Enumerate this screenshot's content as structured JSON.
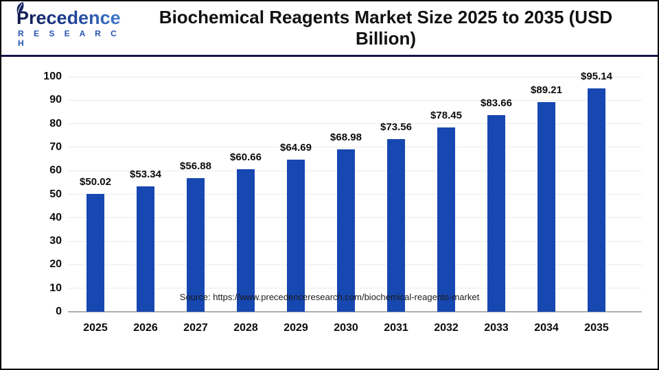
{
  "header": {
    "logo": {
      "brand": "Precedence",
      "subtitle": "R E S E A R C H"
    },
    "title": "Biochemical Reagents Market Size 2025 to 2035 (USD Billion)"
  },
  "chart_data": {
    "type": "bar",
    "title": "Biochemical Reagents Market Size 2025 to 2035 (USD Billion)",
    "categories": [
      "2025",
      "2026",
      "2027",
      "2028",
      "2029",
      "2030",
      "2031",
      "2032",
      "2033",
      "2034",
      "2035"
    ],
    "values": [
      50.02,
      53.34,
      56.88,
      60.66,
      64.69,
      68.98,
      73.56,
      78.45,
      83.66,
      89.21,
      95.14
    ],
    "value_labels": [
      "$50.02",
      "$53.34",
      "$56.88",
      "$60.66",
      "$64.69",
      "$68.98",
      "$73.56",
      "$78.45",
      "$83.66",
      "$89.21",
      "$95.14"
    ],
    "xlabel": "",
    "ylabel": "",
    "ylim": [
      0,
      100
    ],
    "ytick_step": 10,
    "yticks": [
      "0",
      "10",
      "20",
      "30",
      "40",
      "50",
      "60",
      "70",
      "80",
      "90",
      "100"
    ],
    "grid": true,
    "legend": "none",
    "bar_color": "#1747b0"
  },
  "footer": {
    "source": "Source: https://www.precedenceresearch.com/biochemical-reagents-market"
  },
  "colors": {
    "bar_blue": "#1747b0",
    "divider_navy": "#131549",
    "logo_navy": "#10194a",
    "logo_blue": "#3f79cc",
    "research_blue": "#2553b4",
    "gridline_gray": "#ebebeb",
    "axis_gray": "#adadad"
  }
}
